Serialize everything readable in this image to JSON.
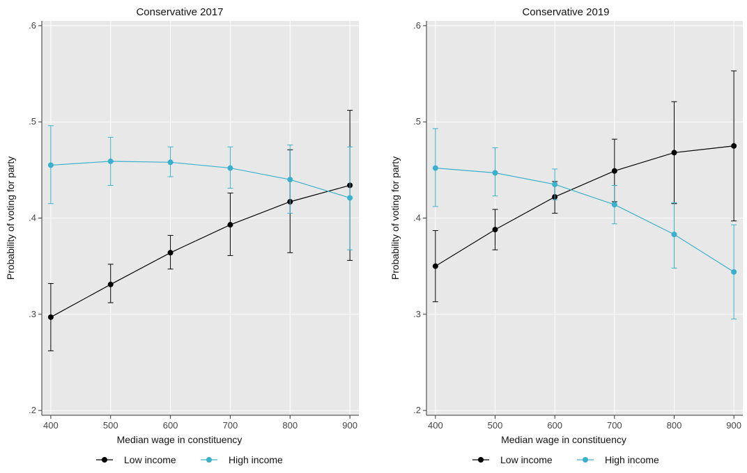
{
  "colors": {
    "low_income": "#000000",
    "high_income": "#3ab0cc",
    "panel_bg": "#e8e8e8",
    "grid": "#ffffff",
    "axis": "#333333"
  },
  "chart_data": [
    {
      "type": "line",
      "title": "Conservative 2017",
      "xlabel": "Median wage in constituency",
      "ylabel": "Probability of voting for party",
      "x": [
        400,
        500,
        600,
        700,
        800,
        900
      ],
      "xlim": [
        385,
        915
      ],
      "ylim": [
        0.195,
        0.605
      ],
      "x_ticks": [
        400,
        500,
        600,
        700,
        800,
        900
      ],
      "x_tick_labels": [
        "400",
        "500",
        "600",
        "700",
        "800",
        "900"
      ],
      "y_ticks": [
        0.2,
        0.3,
        0.4,
        0.5,
        0.6
      ],
      "y_tick_labels": [
        ".2",
        ".3",
        ".4",
        ".5",
        ".6"
      ],
      "grid": true,
      "legend_position": "bottom",
      "series": [
        {
          "name": "Low income",
          "color": "#000000",
          "values": [
            0.297,
            0.331,
            0.364,
            0.393,
            0.417,
            0.434
          ],
          "lower": [
            0.262,
            0.312,
            0.347,
            0.361,
            0.364,
            0.356
          ],
          "upper": [
            0.332,
            0.352,
            0.382,
            0.426,
            0.471,
            0.512
          ]
        },
        {
          "name": "High income",
          "color": "#3ab0cc",
          "values": [
            0.455,
            0.459,
            0.458,
            0.452,
            0.44,
            0.421
          ],
          "lower": [
            0.415,
            0.434,
            0.443,
            0.431,
            0.405,
            0.367
          ],
          "upper": [
            0.496,
            0.484,
            0.474,
            0.474,
            0.476,
            0.474
          ]
        }
      ]
    },
    {
      "type": "line",
      "title": "Conservative 2019",
      "xlabel": "Median wage in constituency",
      "ylabel": "Probability of voting for party",
      "x": [
        400,
        500,
        600,
        700,
        800,
        900
      ],
      "xlim": [
        385,
        915
      ],
      "ylim": [
        0.195,
        0.605
      ],
      "x_ticks": [
        400,
        500,
        600,
        700,
        800,
        900
      ],
      "x_tick_labels": [
        "400",
        "500",
        "600",
        "700",
        "800",
        "900"
      ],
      "y_ticks": [
        0.2,
        0.3,
        0.4,
        0.5,
        0.6
      ],
      "y_tick_labels": [
        ".2",
        ".3",
        ".4",
        ".5",
        ".6"
      ],
      "grid": true,
      "legend_position": "bottom",
      "series": [
        {
          "name": "Low income",
          "color": "#000000",
          "values": [
            0.35,
            0.388,
            0.422,
            0.449,
            0.468,
            0.475
          ],
          "lower": [
            0.313,
            0.367,
            0.405,
            0.417,
            0.415,
            0.397
          ],
          "upper": [
            0.387,
            0.409,
            0.438,
            0.482,
            0.521,
            0.553
          ]
        },
        {
          "name": "High income",
          "color": "#3ab0cc",
          "values": [
            0.452,
            0.447,
            0.435,
            0.414,
            0.383,
            0.344
          ],
          "lower": [
            0.412,
            0.423,
            0.419,
            0.394,
            0.348,
            0.295
          ],
          "upper": [
            0.493,
            0.473,
            0.451,
            0.434,
            0.416,
            0.393
          ]
        }
      ]
    }
  ]
}
